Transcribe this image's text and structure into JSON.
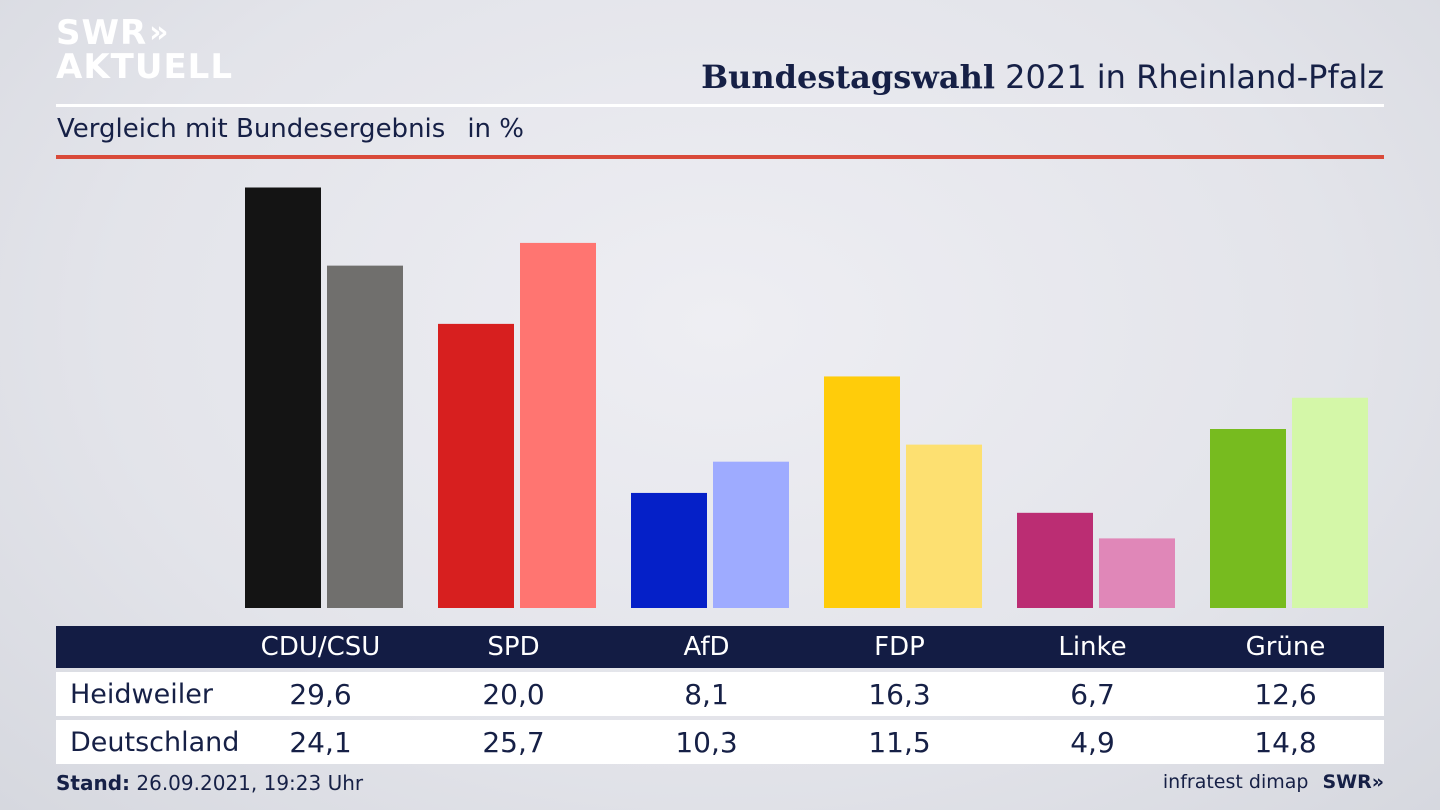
{
  "brand": {
    "line1": "SWR",
    "line2": "AKTUELL",
    "chevron": "»"
  },
  "header": {
    "title_bold": "Bundestagswahl",
    "title_rest": "2021 in Rheinland-Pfalz"
  },
  "subheader": {
    "label": "Vergleich mit Bundesergebnis",
    "unit": "in %"
  },
  "table": {
    "rows": [
      {
        "label": "Heidweiler",
        "values": [
          "29,6",
          "20,0",
          "8,1",
          "16,3",
          "6,7",
          "12,6"
        ]
      },
      {
        "label": "Deutschland",
        "values": [
          "24,1",
          "25,7",
          "10,3",
          "11,5",
          "4,9",
          "14,8"
        ]
      }
    ]
  },
  "footer": {
    "stand_label": "Stand:",
    "stand_value": "26.09.2021, 19:23 Uhr",
    "source": "infratest dimap",
    "brand": "SWR",
    "brand_chevron": "»"
  },
  "chart_data": {
    "type": "bar",
    "title": "Bundestagswahl 2021 in Rheinland-Pfalz",
    "subtitle": "Vergleich mit Bundesergebnis",
    "unit": "in %",
    "categories": [
      "CDU/CSU",
      "SPD",
      "AfD",
      "FDP",
      "Linke",
      "Grüne"
    ],
    "series": [
      {
        "name": "Heidweiler",
        "values": [
          29.6,
          20.0,
          8.1,
          16.3,
          6.7,
          12.6
        ]
      },
      {
        "name": "Deutschland",
        "values": [
          24.1,
          25.7,
          10.3,
          11.5,
          4.9,
          14.8
        ]
      }
    ],
    "colors": [
      [
        "#141414",
        "#706f6d"
      ],
      [
        "#d71f1f",
        "#ff7571"
      ],
      [
        "#0520c8",
        "#9eabff"
      ],
      [
        "#ffcc0a",
        "#fde071"
      ],
      [
        "#bb2d73",
        "#e087b8"
      ],
      [
        "#77bb1f",
        "#d4f7a8"
      ]
    ],
    "ylim": [
      0,
      30
    ],
    "grid": false,
    "legend": "none"
  }
}
